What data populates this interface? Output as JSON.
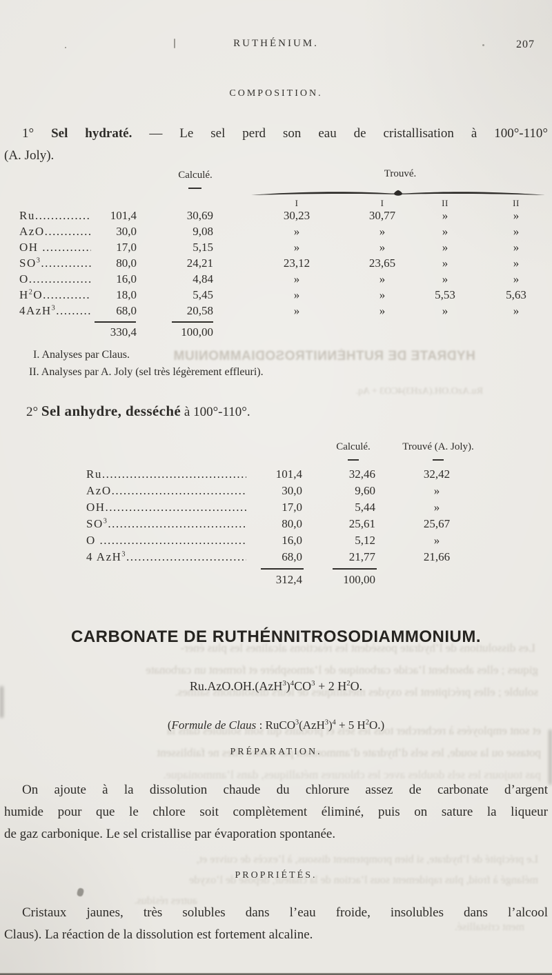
{
  "header": {
    "running_head": "RUTHÉNIUM.",
    "page_number": "207"
  },
  "composition": {
    "title": "COMPOSITION."
  },
  "sel_hydrate": {
    "intro_num": "1°",
    "intro_bold": "Sel hydraté.",
    "intro_rest": " — Le sel perd  son eau  de cristallisation à 100°-110°",
    "intro_line2": "(A. Joly).",
    "table": {
      "col_calcule": "Calculé.",
      "col_trouve": "Trouvé.",
      "subcols": [
        "I",
        "I",
        "II",
        "II"
      ],
      "rows": [
        {
          "label": "Ru......................",
          "w": "101,4",
          "calc": "30,69",
          "t1": "30,23",
          "t2": "30,77",
          "t3": "»",
          "t4": "»"
        },
        {
          "label": "AzO.....................",
          "w": "30,0",
          "calc": "9,08",
          "t1": "»",
          "t2": "»",
          "t3": "»",
          "t4": "»"
        },
        {
          "label": "OH .....................",
          "w": "17,0",
          "calc": "5,15",
          "t1": "»",
          "t2": "»",
          "t3": "»",
          "t4": "»"
        },
        {
          "label": "SO^3.....................",
          "w": "80,0",
          "calc": "24,21",
          "t1": "23,12",
          "t2": "23,65",
          "t3": "»",
          "t4": "»"
        },
        {
          "label": "O.......................",
          "w": "16,0",
          "calc": "4,84",
          "t1": "»",
          "t2": "»",
          "t3": "»",
          "t4": "»"
        },
        {
          "label": "H^2O.....................",
          "w": "18,0",
          "calc": "5,45",
          "t1": "»",
          "t2": "»",
          "t3": "5,53",
          "t4": "5,63"
        },
        {
          "label": "4AzH^3...................",
          "w": "68,0",
          "calc": "20,58",
          "t1": "»",
          "t2": "»",
          "t3": "»",
          "t4": "»"
        }
      ],
      "total_weight": "330,4",
      "total_calc": "100,00"
    },
    "notes": [
      "I. Analyses par Claus.",
      "II. Analyses par A. Joly (sel très légèrement effleuri)."
    ]
  },
  "sel_anhydre": {
    "intro_num": "2°",
    "intro_bold": "Sel anhydre, desséché",
    "intro_rest": " à 100°-110°.",
    "table": {
      "col_calcule": "Calculé.",
      "col_trouve": "Trouvé (A. Joly).",
      "rows": [
        {
          "label": "Ru..............................................",
          "w": "101,4",
          "calc": "32,46",
          "t": "32,42"
        },
        {
          "label": "AzO.............................................",
          "w": "30,0",
          "calc": "9,60",
          "t": "»"
        },
        {
          "label": "OH..............................................",
          "w": "17,0",
          "calc": "5,44",
          "t": "»"
        },
        {
          "label": "SO^3.............................................",
          "w": "80,0",
          "calc": "25,61",
          "t": "25,67"
        },
        {
          "label": "O ..............................................",
          "w": "16,0",
          "calc": "5,12",
          "t": "»"
        },
        {
          "label": "4 AzH^3..........................................",
          "w": "68,0",
          "calc": "21,77",
          "t": "21,66"
        }
      ],
      "total_weight": "312,4",
      "total_calc": "100,00"
    }
  },
  "carbonate": {
    "heading": "CARBONATE DE RUTHÉNNITROSODIAMMONIUM.",
    "formula": "Ru.AzO.OH.(AzH^3)^4CO^3 + 2 H^2O.",
    "claus_prefix": "(",
    "claus_italic": "Formule de Claus",
    "claus_rest": " : RuCO^3(AzH^3)^4 + 5 H^2O.)"
  },
  "preparation": {
    "title": "PRÉPARATION.",
    "lines": [
      "On ajoute à la dissolution chaude du chlorure assez de  carbonate d’argent",
      "humide pour que le chlore soit complètement éliminé, puis on sature la liqueur",
      "de gaz carbonique. Le sel cristallise par évaporation spontanée."
    ]
  },
  "proprietes": {
    "title": "PROPRIÉTÉS.",
    "lines": [
      "Cristaux jaunes, très  solubles  dans  l’eau froide,  insolubles  dans  l’alcool",
      "Claus). La réaction de la dissolution est fortement alcaline."
    ]
  },
  "bleedthrough": {
    "lines": [
      "HYDRATE DE RUTHÉNNITROSODIAMMONIUM",
      "Ru.AzO.OH.(AzH3)4CO3 + Aq.",
      "Les dissolutions de l’hydrate possèdent les réactions alcalines les plus éner-",
      "giques ; elles absorbent l’acide carbonique de l’atmosphère et forment un carbonate",
      "soluble ; elles précipitent les oxydes métalliques de leurs dissolutions salines.",
      "et sont employées à rechercher tous les sels et produits qui sont solubles dans la",
      "potasse ou la soude, les sels d’hydrate d’ammonium par contre elles ne faiblissent",
      "pas toujours les sels doubles avec les chlorures métalliques, dans l’ammoniaque.",
      "Le précipité de l’hydrate, si bien promptement dissous, à l’excès de cuivre et,",
      "mélangé à froid, plus rapidement sous l’action de la chaleur, dépose de l’oxyde",
      "autres résidus.",
      "ment cristallisé."
    ]
  },
  "colors": {
    "paper": "#eae8e3",
    "ink": "#2e2c29"
  }
}
